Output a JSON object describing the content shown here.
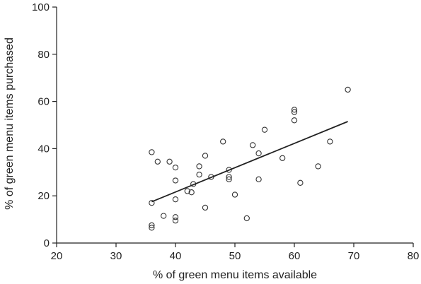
{
  "chart_data": {
    "type": "scatter",
    "title": "",
    "xlabel": "% of green menu items available",
    "ylabel": "% of green menu items purchased",
    "xlim": [
      20,
      80
    ],
    "ylim": [
      0,
      100
    ],
    "xticks": [
      20,
      30,
      40,
      50,
      60,
      70,
      80
    ],
    "yticks": [
      0,
      20,
      40,
      60,
      80,
      100
    ],
    "grid": false,
    "legend": "none",
    "marker_color": "#333333",
    "points": [
      {
        "x": 36,
        "y": 38.5
      },
      {
        "x": 36,
        "y": 17
      },
      {
        "x": 36,
        "y": 7.5
      },
      {
        "x": 36,
        "y": 6.5
      },
      {
        "x": 37,
        "y": 34.5
      },
      {
        "x": 38,
        "y": 11.5
      },
      {
        "x": 39,
        "y": 34.5
      },
      {
        "x": 40,
        "y": 32
      },
      {
        "x": 40,
        "y": 26.5
      },
      {
        "x": 40,
        "y": 18.5
      },
      {
        "x": 40,
        "y": 11
      },
      {
        "x": 40,
        "y": 9.5
      },
      {
        "x": 42,
        "y": 22
      },
      {
        "x": 42.7,
        "y": 21.5
      },
      {
        "x": 43,
        "y": 25
      },
      {
        "x": 44,
        "y": 32.5
      },
      {
        "x": 44,
        "y": 29
      },
      {
        "x": 45,
        "y": 37
      },
      {
        "x": 45,
        "y": 15
      },
      {
        "x": 46,
        "y": 28
      },
      {
        "x": 48,
        "y": 43
      },
      {
        "x": 49,
        "y": 31
      },
      {
        "x": 49,
        "y": 28
      },
      {
        "x": 49,
        "y": 27
      },
      {
        "x": 50,
        "y": 20.5
      },
      {
        "x": 52,
        "y": 10.5
      },
      {
        "x": 53,
        "y": 41.5
      },
      {
        "x": 54,
        "y": 38
      },
      {
        "x": 54,
        "y": 27
      },
      {
        "x": 55,
        "y": 48
      },
      {
        "x": 58,
        "y": 36
      },
      {
        "x": 60,
        "y": 56.5
      },
      {
        "x": 60,
        "y": 55.5
      },
      {
        "x": 60,
        "y": 52
      },
      {
        "x": 61,
        "y": 25.5
      },
      {
        "x": 64,
        "y": 32.5
      },
      {
        "x": 66,
        "y": 43
      },
      {
        "x": 69,
        "y": 65
      }
    ],
    "trendline": {
      "x1": 36,
      "y1": 17.5,
      "x2": 69,
      "y2": 51.5
    }
  }
}
